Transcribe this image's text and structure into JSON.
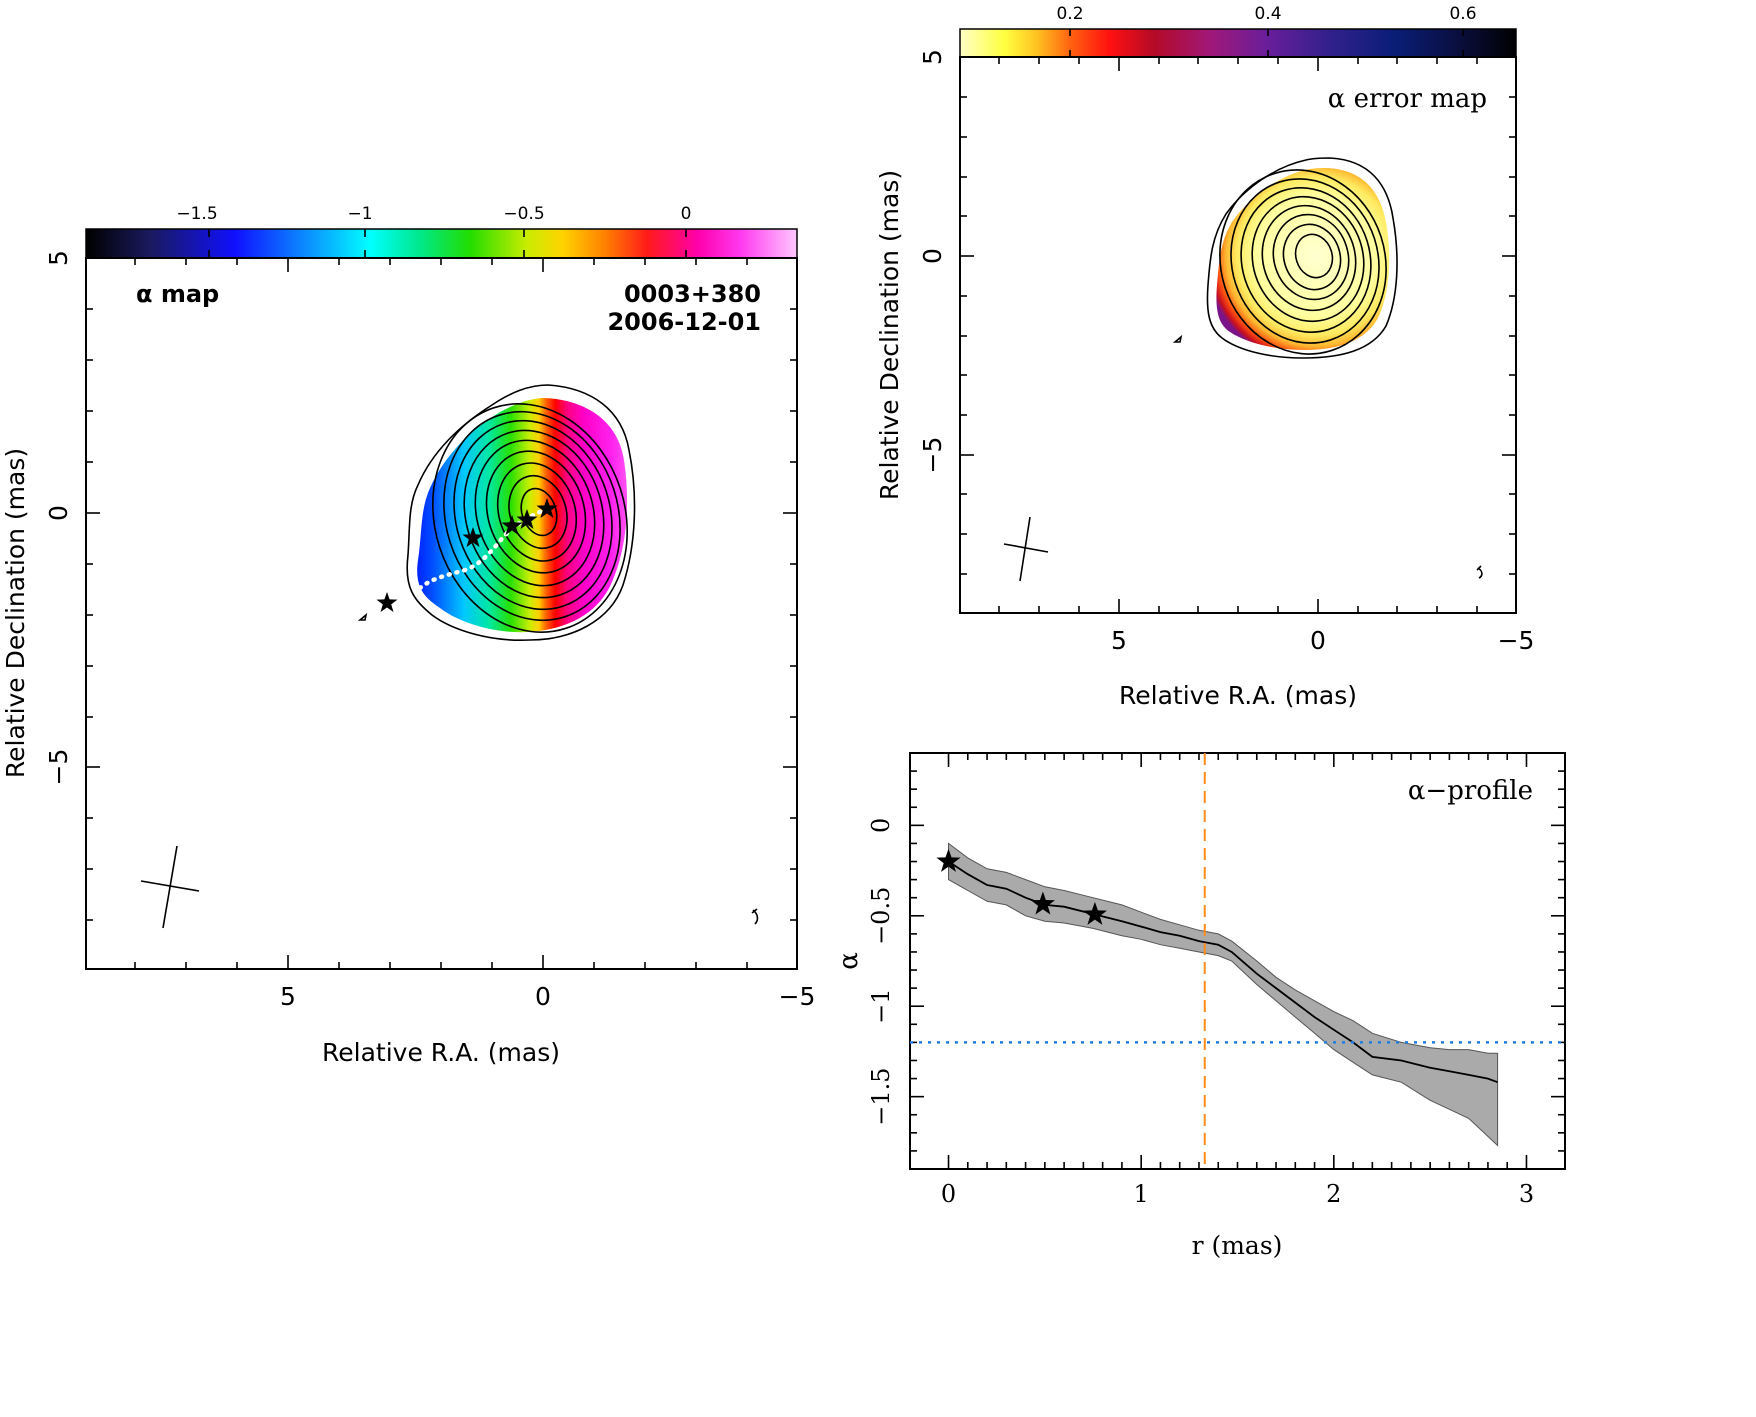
{
  "panels": {
    "alpha_map": {
      "label": "α map",
      "source": "0003+380",
      "epoch": "2006-12-01",
      "xlabel": "Relative R.A. (mas)",
      "ylabel": "Relative Declination (mas)",
      "colorbar_ticks": [
        "−1.5",
        "−1",
        "−0.5",
        "0"
      ],
      "x_ticks": [
        "5",
        "0",
        "−5"
      ],
      "y_ticks": [
        "5",
        "0",
        "−5"
      ]
    },
    "error_map": {
      "label": "α error map",
      "xlabel": "Relative R.A. (mas)",
      "ylabel": "Relative Declination (mas)",
      "colorbar_ticks": [
        "0.2",
        "0.4",
        "0.6"
      ],
      "x_ticks": [
        "5",
        "0",
        "−5"
      ],
      "y_ticks": [
        "5",
        "0",
        "−5"
      ]
    },
    "profile": {
      "label": "α−profile",
      "xlabel": "r (mas)",
      "ylabel": "α",
      "x_ticks": [
        "0",
        "1",
        "2",
        "3"
      ],
      "y_ticks": [
        "0",
        "−0.5",
        "−1",
        "−1.5"
      ]
    }
  },
  "chart_data": [
    {
      "type": "heatmap",
      "name": "alpha_map",
      "title": "α map",
      "xlabel": "Relative R.A. (mas)",
      "ylabel": "Relative Declination (mas)",
      "xlim": [
        9,
        -5
      ],
      "ylim": [
        -9,
        5
      ],
      "colorbar_range": [
        -1.8,
        0.2
      ],
      "colorbar_ticks": [
        -1.5,
        -1,
        -0.5,
        0
      ],
      "colormap": "rainbow (black-blue-cyan-green-yellow-red-magenta-white)",
      "stars_ra_dec": [
        [
          -0.1,
          0.1
        ],
        [
          0.35,
          -0.15
        ],
        [
          0.6,
          -0.25
        ],
        [
          1.35,
          -0.5
        ],
        [
          3.05,
          -1.75
        ]
      ],
      "ridge_line_color": "#ffffff"
    },
    {
      "type": "heatmap",
      "name": "error_map",
      "title": "α error map",
      "xlabel": "Relative R.A. (mas)",
      "ylabel": "Relative Declination (mas)",
      "xlim": [
        9,
        -5
      ],
      "ylim": [
        -9,
        5
      ],
      "colorbar_range": [
        0.1,
        0.65
      ],
      "colorbar_ticks": [
        0.2,
        0.4,
        0.6
      ],
      "colormap": "heat (light yellow-yellow-red-purple-navy-black)"
    },
    {
      "type": "line",
      "name": "profile",
      "title": "α−profile",
      "xlabel": "r (mas)",
      "ylabel": "α",
      "xlim": [
        -0.2,
        3.2
      ],
      "ylim": [
        -1.9,
        0.4
      ],
      "x_ticks": [
        0,
        1,
        2,
        3
      ],
      "y_ticks": [
        0,
        -0.5,
        -1,
        -1.5
      ],
      "series": [
        {
          "x": [
            0,
            0.1,
            0.2,
            0.3,
            0.4,
            0.5,
            0.6,
            0.75,
            0.9,
            1.0,
            1.1,
            1.2,
            1.3,
            1.4,
            1.47,
            1.6,
            1.7,
            1.8,
            1.9,
            2.0,
            2.1,
            2.2,
            2.35,
            2.5,
            2.6,
            2.7,
            2.8,
            2.85
          ],
          "values": [
            -0.2,
            -0.27,
            -0.33,
            -0.35,
            -0.4,
            -0.44,
            -0.45,
            -0.49,
            -0.53,
            -0.56,
            -0.59,
            -0.61,
            -0.64,
            -0.66,
            -0.7,
            -0.82,
            -0.9,
            -0.98,
            -1.06,
            -1.13,
            -1.2,
            -1.28,
            -1.3,
            -1.34,
            -1.36,
            -1.38,
            -1.4,
            -1.42
          ],
          "lower": [
            -0.3,
            -0.36,
            -0.42,
            -0.44,
            -0.5,
            -0.53,
            -0.54,
            -0.57,
            -0.61,
            -0.63,
            -0.66,
            -0.68,
            -0.7,
            -0.72,
            -0.75,
            -0.88,
            -0.97,
            -1.06,
            -1.15,
            -1.24,
            -1.31,
            -1.38,
            -1.42,
            -1.52,
            -1.57,
            -1.62,
            -1.72,
            -1.77
          ],
          "upper": [
            -0.1,
            -0.18,
            -0.24,
            -0.26,
            -0.3,
            -0.34,
            -0.36,
            -0.4,
            -0.44,
            -0.48,
            -0.52,
            -0.55,
            -0.58,
            -0.6,
            -0.64,
            -0.75,
            -0.84,
            -0.91,
            -0.97,
            -1.03,
            -1.08,
            -1.15,
            -1.2,
            -1.23,
            -1.24,
            -1.24,
            -1.26,
            -1.26
          ],
          "color": "#000000",
          "band_color": "#aaaaaa"
        }
      ],
      "star_markers_x": [
        0,
        0.49,
        0.76
      ],
      "vline_x": 1.33,
      "vline_color": "#ff8c1a",
      "hline_y": -1.2,
      "hline_color": "#1f7fe0"
    }
  ]
}
